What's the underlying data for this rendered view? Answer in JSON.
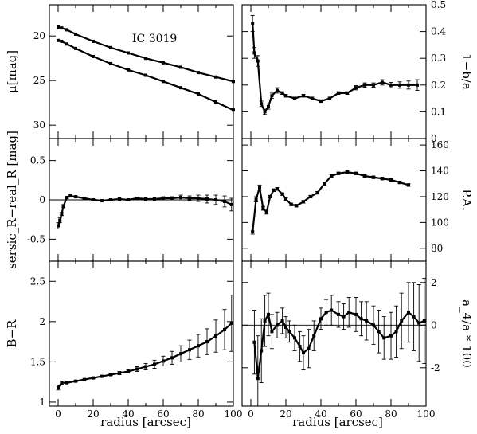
{
  "figure": {
    "annotation": "IC 3019",
    "xlabel_left": "radius [arcsec]",
    "xlabel_right": "radius [arcsec]"
  },
  "chart_data": [
    {
      "id": "surface_brightness",
      "type": "scatter",
      "ylabel": "μ[mag]",
      "xlim": [
        -5,
        100
      ],
      "ylim": [
        31.5,
        16.5
      ],
      "y_inverted": true,
      "xticks": [
        0,
        20,
        40,
        60,
        80,
        100
      ],
      "yticks": [
        20,
        25,
        30
      ],
      "xticklabels": [],
      "series": [
        {
          "x": [
            0,
            2,
            5,
            10,
            20,
            30,
            40,
            50,
            60,
            70,
            80,
            90,
            100
          ],
          "y": [
            19.0,
            19.1,
            19.3,
            19.8,
            20.6,
            21.3,
            21.9,
            22.5,
            23.0,
            23.5,
            24.1,
            24.6,
            25.1
          ]
        },
        {
          "x": [
            0,
            2,
            5,
            10,
            20,
            30,
            40,
            50,
            60,
            70,
            80,
            90,
            100
          ],
          "y": [
            20.5,
            20.6,
            20.9,
            21.4,
            22.3,
            23.1,
            23.8,
            24.4,
            25.1,
            25.8,
            26.5,
            27.4,
            28.3
          ]
        }
      ]
    },
    {
      "id": "ellipticity",
      "type": "scatter",
      "ylabel": "1−b/a",
      "xlim": [
        -5,
        100
      ],
      "ylim": [
        0,
        0.5
      ],
      "xticks": [
        0,
        20,
        40,
        60,
        80,
        100
      ],
      "yticks": [
        0,
        0.1,
        0.2,
        0.3,
        0.4,
        0.5
      ],
      "yticklabels": [
        "0",
        "0.1",
        "0.2",
        "0.3",
        "0.4",
        "0.5"
      ],
      "xticklabels": [],
      "series": [
        {
          "x": [
            1,
            2,
            4,
            6,
            8,
            10,
            12,
            15,
            18,
            20,
            25,
            30,
            35,
            40,
            45,
            50,
            55,
            60,
            65,
            70,
            75,
            80,
            85,
            90,
            95
          ],
          "y": [
            0.43,
            0.32,
            0.29,
            0.13,
            0.1,
            0.12,
            0.16,
            0.18,
            0.17,
            0.16,
            0.15,
            0.16,
            0.15,
            0.14,
            0.15,
            0.17,
            0.17,
            0.19,
            0.2,
            0.2,
            0.21,
            0.2,
            0.2,
            0.2,
            0.2
          ],
          "yerr": [
            0.03,
            0.02,
            0.02,
            0.01,
            0.01,
            0.01,
            0.01,
            0.01,
            0.005,
            0.005,
            0.005,
            0.005,
            0.005,
            0.005,
            0.005,
            0.005,
            0.005,
            0.008,
            0.008,
            0.008,
            0.01,
            0.01,
            0.012,
            0.015,
            0.02
          ]
        }
      ]
    },
    {
      "id": "sersic_residual",
      "type": "scatter",
      "ylabel": "sersic_R−real_R [mag]",
      "xlim": [
        -5,
        100
      ],
      "ylim": [
        -0.78,
        0.78
      ],
      "xticks": [
        0,
        20,
        40,
        60,
        80,
        100
      ],
      "yticks": [
        -0.5,
        0,
        0.5
      ],
      "yticklabels": [
        "-0.5",
        "0",
        "0.5"
      ],
      "xticklabels": [],
      "hline": 0,
      "series": [
        {
          "x": [
            0,
            1,
            2,
            3,
            5,
            7,
            10,
            15,
            20,
            25,
            30,
            35,
            40,
            45,
            50,
            55,
            60,
            65,
            70,
            75,
            80,
            85,
            90,
            95,
            99
          ],
          "y": [
            -0.33,
            -0.26,
            -0.18,
            -0.08,
            0.03,
            0.05,
            0.04,
            0.02,
            0.0,
            -0.01,
            0.0,
            0.01,
            0.0,
            0.02,
            0.01,
            0.01,
            0.02,
            0.02,
            0.03,
            0.02,
            0.02,
            0.01,
            0.0,
            -0.02,
            -0.06
          ],
          "yerr": [
            0.04,
            0.03,
            0.02,
            0.02,
            0.01,
            0.01,
            0.01,
            0.01,
            0.01,
            0.01,
            0.01,
            0.01,
            0.01,
            0.01,
            0.01,
            0.01,
            0.02,
            0.02,
            0.03,
            0.03,
            0.04,
            0.05,
            0.06,
            0.07,
            0.08
          ]
        }
      ]
    },
    {
      "id": "position_angle",
      "type": "scatter",
      "ylabel": "P.A.",
      "xlim": [
        -5,
        100
      ],
      "ylim": [
        70,
        165
      ],
      "xticks": [
        0,
        20,
        40,
        60,
        80,
        100
      ],
      "yticks": [
        80,
        100,
        120,
        140,
        160
      ],
      "yticklabels": [
        "80",
        "100",
        "120",
        "140",
        "160"
      ],
      "xticklabels": [],
      "series": [
        {
          "x": [
            1,
            3,
            5,
            7,
            9,
            11,
            13,
            15,
            18,
            20,
            23,
            26,
            30,
            34,
            38,
            42,
            46,
            50,
            55,
            60,
            65,
            70,
            75,
            80,
            85,
            90
          ],
          "y": [
            93,
            118,
            127,
            111,
            108,
            120,
            125,
            126,
            122,
            118,
            114,
            113,
            116,
            120,
            123,
            130,
            136,
            138,
            139,
            138,
            136,
            135,
            134,
            133,
            131,
            129
          ],
          "yerr": [
            2,
            2,
            2,
            1.5,
            1.5,
            1,
            1,
            1,
            1,
            1,
            1,
            1,
            1,
            1,
            1,
            1,
            1,
            1,
            1,
            1,
            1,
            1,
            1,
            1,
            1,
            1
          ]
        }
      ]
    },
    {
      "id": "color_profile",
      "type": "scatter",
      "ylabel": "B−R",
      "xlim": [
        -5,
        100
      ],
      "ylim": [
        0.95,
        2.75
      ],
      "xticks": [
        0,
        20,
        40,
        60,
        80,
        100
      ],
      "yticks": [
        1,
        1.5,
        2,
        2.5
      ],
      "xticklabels": [
        "0",
        "20",
        "40",
        "60",
        "80",
        "100"
      ],
      "series": [
        {
          "x": [
            0,
            2,
            5,
            10,
            15,
            20,
            25,
            30,
            35,
            40,
            45,
            50,
            55,
            60,
            65,
            70,
            75,
            80,
            85,
            90,
            95,
            99
          ],
          "y": [
            1.18,
            1.24,
            1.24,
            1.26,
            1.28,
            1.3,
            1.32,
            1.34,
            1.36,
            1.38,
            1.41,
            1.44,
            1.47,
            1.51,
            1.55,
            1.6,
            1.65,
            1.7,
            1.75,
            1.82,
            1.9,
            1.98
          ],
          "yerr": [
            0.03,
            0.02,
            0.01,
            0.01,
            0.01,
            0.01,
            0.01,
            0.01,
            0.02,
            0.02,
            0.03,
            0.04,
            0.05,
            0.06,
            0.08,
            0.1,
            0.12,
            0.14,
            0.16,
            0.2,
            0.25,
            0.35
          ]
        }
      ]
    },
    {
      "id": "a4_parameter",
      "type": "scatter",
      "ylabel": "a_4/a * 100",
      "xlim": [
        -5,
        100
      ],
      "ylim": [
        -3.8,
        3.0
      ],
      "xticks": [
        0,
        20,
        40,
        60,
        80,
        100
      ],
      "yticks": [
        -2,
        0,
        2
      ],
      "yticklabels": [
        "-2",
        "0",
        "2"
      ],
      "xticklabels": [
        "0",
        "20",
        "40",
        "60",
        "80",
        "100"
      ],
      "hline": 0,
      "series": [
        {
          "x": [
            2,
            4,
            6,
            8,
            10,
            12,
            15,
            18,
            20,
            22,
            25,
            28,
            30,
            33,
            36,
            40,
            43,
            46,
            50,
            53,
            56,
            60,
            63,
            66,
            70,
            73,
            76,
            80,
            83,
            86,
            90,
            93,
            96,
            99
          ],
          "y": [
            -0.8,
            -2.5,
            -1.2,
            0.2,
            0.5,
            -0.3,
            0.0,
            0.2,
            -0.1,
            -0.3,
            -0.6,
            -1.0,
            -1.3,
            -1.1,
            -0.5,
            0.3,
            0.6,
            0.7,
            0.5,
            0.4,
            0.6,
            0.5,
            0.3,
            0.2,
            0.0,
            -0.3,
            -0.6,
            -0.5,
            -0.3,
            0.2,
            0.6,
            0.4,
            0.1,
            0.2
          ],
          "yerr": [
            1.5,
            2.0,
            1.5,
            1.2,
            1.0,
            0.8,
            0.6,
            0.6,
            0.5,
            0.5,
            0.6,
            0.7,
            0.8,
            0.9,
            0.7,
            0.5,
            0.6,
            0.7,
            0.6,
            0.6,
            0.7,
            0.8,
            0.8,
            0.9,
            0.9,
            1.0,
            1.0,
            1.1,
            1.2,
            1.3,
            1.4,
            1.6,
            1.8,
            2.0
          ]
        }
      ]
    }
  ]
}
